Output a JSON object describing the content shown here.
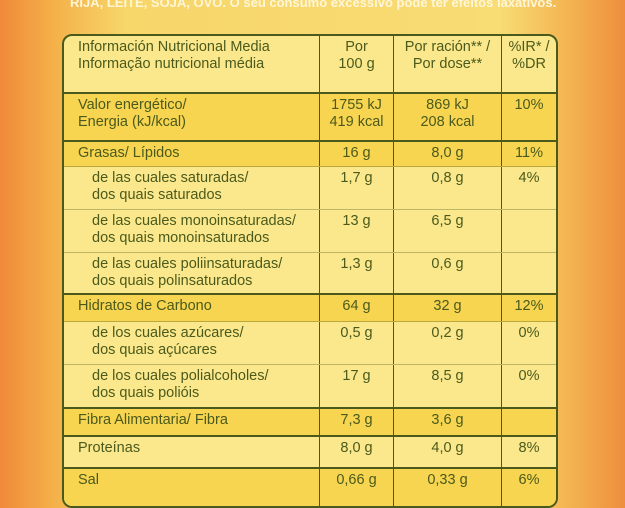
{
  "top_text": "RIJA, LEITE, SOJA, OVO. O seu consumo excessivo pode ter efeitos laxativos.",
  "table": {
    "header": [
      [
        "Información Nutricional Media",
        "Informação nutricional média"
      ],
      [
        "Por",
        "100 g"
      ],
      [
        "Por ración** /",
        "Por dose**"
      ],
      [
        "%IR* /",
        "%DR"
      ]
    ],
    "rows": [
      {
        "label": [
          "Valor energético/",
          "Energia (kJ/kcal)"
        ],
        "per_100g": [
          "1755 kJ",
          "419 kcal"
        ],
        "per_serving": [
          "869 kJ",
          "208 kcal"
        ],
        "ri": "10%"
      },
      {
        "label": [
          "Grasas/ Lípidos"
        ],
        "per_100g": [
          "16 g"
        ],
        "per_serving": [
          "8,0 g"
        ],
        "ri": "11%"
      },
      {
        "label": [
          "de las cuales saturadas/",
          "dos quais saturados"
        ],
        "per_100g": [
          "1,7 g"
        ],
        "per_serving": [
          "0,8 g"
        ],
        "ri": "4%"
      },
      {
        "label": [
          "de las cuales monoinsaturadas/",
          "dos quais monoinsaturados"
        ],
        "per_100g": [
          "13 g"
        ],
        "per_serving": [
          "6,5 g"
        ]
      },
      {
        "label": [
          "de las cuales poliinsaturadas/",
          "dos quais polinsaturados"
        ],
        "per_100g": [
          "1,3 g"
        ],
        "per_serving": [
          "0,6 g"
        ]
      },
      {
        "label": [
          "Hidratos de Carbono"
        ],
        "per_100g": [
          "64 g"
        ],
        "per_serving": [
          "32 g"
        ],
        "ri": "12%"
      },
      {
        "label": [
          "de los cuales azúcares/",
          "dos quais açúcares"
        ],
        "per_100g": [
          "0,5 g"
        ],
        "per_serving": [
          "0,2 g"
        ],
        "ri": "0%"
      },
      {
        "label": [
          "de los cuales polialcoholes/",
          "dos quais polióis"
        ],
        "per_100g": [
          "17 g"
        ],
        "per_serving": [
          "8,5 g"
        ],
        "ri": "0%"
      },
      {
        "label": [
          "Fibra Alimentaria/ Fibra"
        ],
        "per_100g": [
          "7,3 g"
        ],
        "per_serving": [
          "3,6 g"
        ]
      },
      {
        "label": [
          "Proteínas"
        ],
        "per_100g": [
          "8,0 g"
        ],
        "per_serving": [
          "4,0 g"
        ],
        "ri": "8%"
      },
      {
        "label": [
          "Sal"
        ],
        "per_100g": [
          "0,66 g"
        ],
        "per_serving": [
          "0,33 g"
        ],
        "ri": "6%"
      }
    ]
  }
}
